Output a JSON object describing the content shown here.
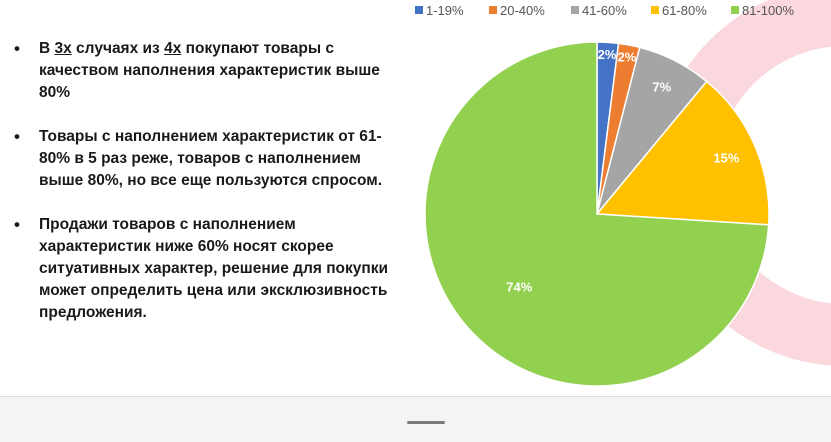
{
  "bullets": [
    {
      "before": "В ",
      "u1": "3х",
      "mid": " случаях из ",
      "u2": "4х",
      "after": " покупают товары с качеством наполнения характеристик выше 80%"
    },
    {
      "text": "Товары с наполнением характеристик от 61-80% в 5 раз реже, товаров с наполнением выше 80%, но все еще пользуются спросом."
    },
    {
      "text": "Продажи товаров с наполнением характеристик ниже 60% носят скорее ситуативных характер, решение для покупки может определить цена или эксклюзивность предложения."
    }
  ],
  "colors": {
    "decor_pink": "#fbd7de"
  },
  "chart_data": {
    "type": "pie",
    "title": "",
    "legend_position": "top",
    "categories": [
      "1-19%",
      "20-40%",
      "41-60%",
      "61-80%",
      "81-100%"
    ],
    "values": [
      2,
      2,
      7,
      15,
      74
    ],
    "labels": [
      "2%",
      "2%",
      "7%",
      "15%",
      "74%"
    ],
    "colors": [
      "#4472c4",
      "#ed7d31",
      "#a5a5a5",
      "#ffc000",
      "#92d050"
    ]
  }
}
